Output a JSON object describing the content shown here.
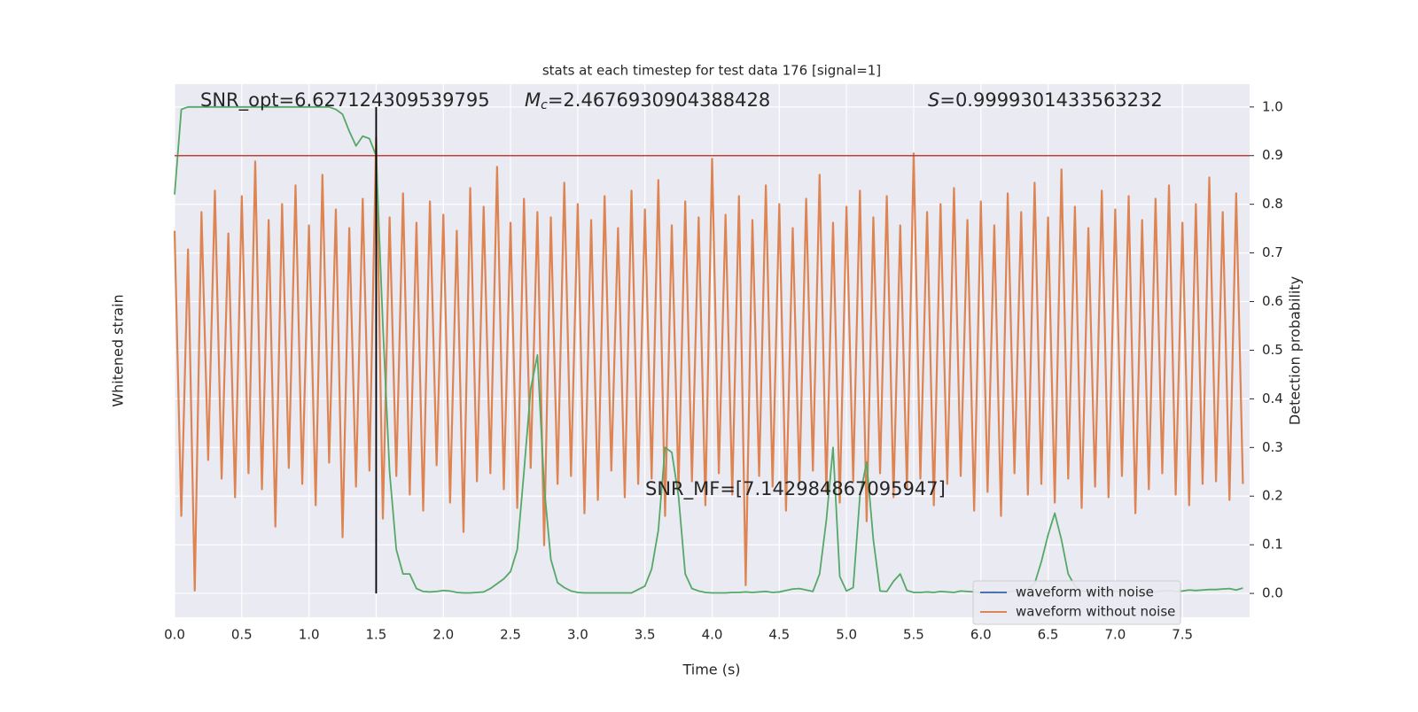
{
  "chart_data": {
    "type": "line",
    "title": "stats at each timestep for test data 176 [signal=1]",
    "xlabel": "Time (s)",
    "ylabel": "Whitened strain",
    "y2label": "Detection probability",
    "xlim": [
      0,
      8.0
    ],
    "xticks": [
      {
        "value": 0,
        "label": "0.0"
      },
      0.5,
      {
        "value": 1,
        "label": "1.0"
      },
      1.5,
      {
        "value": 2,
        "label": "2.0"
      },
      2.5,
      {
        "value": 3,
        "label": "3.0"
      },
      3.5,
      {
        "value": 4,
        "label": "4.0"
      },
      4.5,
      {
        "value": 5,
        "label": "5.0"
      },
      5.5,
      {
        "value": 6,
        "label": "6.0"
      },
      6.5,
      {
        "value": 7,
        "label": "7.0"
      },
      7.5
    ],
    "ylim": [
      -1,
      1
    ],
    "y2lim": [
      -0.049,
      1.047
    ],
    "y2ticks": [
      {
        "value": 0,
        "label": "0.0"
      },
      0.1,
      0.2,
      0.3,
      0.4,
      0.5,
      0.6,
      0.7,
      0.8,
      0.9,
      {
        "value": 1,
        "label": "1.0"
      }
    ],
    "grid": true,
    "legend": "lower right",
    "hline": {
      "value": 0.9,
      "color": "#c0423b"
    },
    "vline": {
      "x": 1.5,
      "ymin": 0,
      "ymax": 1.0,
      "color": "#000000"
    },
    "annotations": [
      {
        "text": "SNR_opt=6.627124309539795"
      },
      {
        "italic": "M",
        "sub": "c",
        "text": "=2.4676930904388428"
      },
      {
        "italic": "S",
        "text": "=0.9999301433563232"
      },
      {
        "text": "SNR_MF=[7.142984867095947]"
      }
    ],
    "x": [
      0,
      0.05,
      0.1,
      0.15,
      0.2,
      0.25,
      0.3,
      0.35,
      0.4,
      0.45,
      0.5,
      0.55,
      0.6,
      0.65,
      0.7,
      0.75,
      0.8,
      0.85,
      0.9,
      0.95,
      1,
      1.05,
      1.1,
      1.15,
      1.2,
      1.25,
      1.3,
      1.35,
      1.4,
      1.45,
      1.5,
      1.55,
      1.6,
      1.65,
      1.7,
      1.75,
      1.8,
      1.85,
      1.9,
      1.95,
      2,
      2.05,
      2.1,
      2.15,
      2.2,
      2.25,
      2.3,
      2.35,
      2.4,
      2.45,
      2.5,
      2.55,
      2.6,
      2.65,
      2.7,
      2.75,
      2.8,
      2.85,
      2.9,
      2.95,
      3,
      3.05,
      3.1,
      3.15,
      3.2,
      3.25,
      3.3,
      3.35,
      3.4,
      3.45,
      3.5,
      3.55,
      3.6,
      3.65,
      3.7,
      3.75,
      3.8,
      3.85,
      3.9,
      3.95,
      4,
      4.05,
      4.1,
      4.15,
      4.2,
      4.25,
      4.3,
      4.35,
      4.4,
      4.45,
      4.5,
      4.55,
      4.6,
      4.65,
      4.7,
      4.75,
      4.8,
      4.85,
      4.9,
      4.95,
      5,
      5.05,
      5.1,
      5.15,
      5.2,
      5.25,
      5.3,
      5.35,
      5.4,
      5.45,
      5.5,
      5.55,
      5.6,
      5.65,
      5.7,
      5.75,
      5.8,
      5.85,
      5.9,
      5.95,
      6,
      6.05,
      6.1,
      6.15,
      6.2,
      6.25,
      6.3,
      6.35,
      6.4,
      6.45,
      6.5,
      6.55,
      6.6,
      6.65,
      6.7,
      6.75,
      6.8,
      6.85,
      6.9,
      6.95,
      7,
      7.05,
      7.1,
      7.15,
      7.2,
      7.25,
      7.3,
      7.35,
      7.4,
      7.45,
      7.5,
      7.55,
      7.6,
      7.65,
      7.7,
      7.75,
      7.8,
      7.85,
      7.9,
      7.95
    ],
    "series": [
      {
        "name": "waveform with noise",
        "color": "#4c72b0",
        "axis": "y",
        "values": [
          null,
          null,
          null,
          null,
          null,
          null,
          null,
          null,
          null,
          null,
          null,
          null,
          null,
          null,
          null,
          null,
          null,
          null,
          null,
          null,
          null,
          null,
          null,
          null,
          null,
          null,
          null,
          null,
          null,
          null,
          null,
          null,
          null,
          null,
          null,
          null,
          null,
          null,
          null,
          null,
          null,
          null,
          null,
          null,
          null,
          null,
          null,
          null,
          null,
          null,
          null,
          null,
          null,
          null,
          null,
          null,
          null,
          null,
          null,
          null,
          null,
          null,
          null,
          null,
          null,
          null,
          null,
          null,
          null,
          null,
          null,
          null,
          null,
          null,
          null,
          null,
          null,
          null,
          null,
          null,
          null,
          null,
          null,
          null,
          null,
          null,
          null,
          null,
          null,
          null,
          null,
          null,
          null,
          null,
          null,
          null,
          null,
          null,
          null,
          null,
          null,
          null,
          null,
          null,
          null,
          null,
          null,
          null,
          null,
          null,
          null,
          null,
          null,
          null,
          null,
          null,
          null,
          null,
          null,
          null,
          null,
          null,
          null,
          null,
          null,
          null,
          null,
          null,
          null,
          null,
          null,
          null,
          null,
          null,
          null,
          null,
          null,
          null,
          null,
          null,
          null,
          null,
          null,
          null,
          null,
          null,
          null,
          null,
          null,
          null,
          null,
          null,
          null,
          null,
          null,
          null,
          null,
          null,
          null,
          null
        ]
      },
      {
        "name": "waveform without noise",
        "color": "#dd8452",
        "axis": "y",
        "values": [
          0.45,
          -0.62,
          0.38,
          -0.9,
          0.52,
          -0.41,
          0.6,
          -0.48,
          0.44,
          -0.55,
          0.58,
          -0.46,
          0.71,
          -0.52,
          0.49,
          -0.66,
          0.55,
          -0.44,
          0.62,
          -0.5,
          0.47,
          -0.58,
          0.66,
          -0.42,
          0.53,
          -0.7,
          0.46,
          -0.51,
          0.57,
          -0.45,
          0.8,
          -0.63,
          0.5,
          -0.47,
          0.59,
          -0.54,
          0.48,
          -0.6,
          0.56,
          -0.43,
          0.51,
          -0.57,
          0.45,
          -0.68,
          0.61,
          -0.49,
          0.54,
          -0.46,
          0.69,
          -0.52,
          0.48,
          -0.59,
          0.57,
          -0.44,
          0.52,
          -0.73,
          0.5,
          -0.5,
          0.63,
          -0.47,
          0.55,
          -0.61,
          0.49,
          -0.56,
          0.58,
          -0.45,
          0.46,
          -0.55,
          0.6,
          -0.5,
          0.53,
          -0.48,
          0.64,
          -0.62,
          0.47,
          -0.52,
          0.56,
          -0.49,
          0.5,
          -0.58,
          0.72,
          -0.46,
          0.51,
          -0.54,
          0.58,
          -0.88,
          0.49,
          -0.47,
          0.62,
          -0.51,
          0.55,
          -0.6,
          0.46,
          -0.5,
          0.57,
          -0.45,
          0.66,
          -0.53,
          0.48,
          -0.57,
          0.54,
          -0.49,
          0.6,
          -0.64,
          0.5,
          -0.46,
          0.58,
          -0.55,
          0.47,
          -0.52,
          0.74,
          -0.48,
          0.52,
          -0.58,
          0.55,
          -0.5,
          0.61,
          -0.47,
          0.49,
          -0.6,
          0.56,
          -0.53,
          0.47,
          -0.62,
          0.59,
          -0.46,
          0.52,
          -0.54,
          0.63,
          -0.5,
          0.5,
          -0.57,
          0.68,
          -0.48,
          0.54,
          -0.59,
          0.46,
          -0.51,
          0.6,
          -0.55,
          0.53,
          -0.47,
          0.58,
          -0.61,
          0.49,
          -0.52,
          0.57,
          -0.46,
          0.62,
          -0.54,
          0.48,
          -0.58,
          0.55,
          -0.5,
          0.65,
          -0.49,
          0.52,
          -0.56,
          0.59,
          -0.5
        ]
      },
      {
        "color": "#55a868",
        "axis": "y2",
        "values": [
          0.82,
          0.995,
          1.0,
          1.0,
          1.0,
          1.0,
          1.0,
          1.0,
          1.0,
          1.0,
          1.0,
          1.0,
          1.0,
          1.0,
          1.0,
          1.0,
          1.0,
          1.0,
          1.0,
          1.0,
          1.0,
          1.0,
          1.0,
          1.0,
          0.995,
          0.985,
          0.95,
          0.92,
          0.94,
          0.935,
          0.9,
          0.55,
          0.25,
          0.09,
          0.04,
          0.04,
          0.01,
          0.004,
          0.003,
          0.004,
          0.006,
          0.005,
          0.002,
          0.001,
          0.001,
          0.002,
          0.003,
          0.01,
          0.02,
          0.03,
          0.045,
          0.09,
          0.25,
          0.42,
          0.49,
          0.22,
          0.07,
          0.022,
          0.012,
          0.005,
          0.002,
          0.001,
          0.001,
          0.001,
          0.001,
          0.001,
          0.001,
          0.001,
          0.001,
          0.008,
          0.015,
          0.05,
          0.13,
          0.3,
          0.29,
          0.2,
          0.04,
          0.01,
          0.005,
          0.002,
          0.001,
          0.001,
          0.001,
          0.002,
          0.002,
          0.003,
          0.002,
          0.003,
          0.004,
          0.002,
          0.003,
          0.006,
          0.009,
          0.01,
          0.007,
          0.004,
          0.04,
          0.15,
          0.3,
          0.035,
          0.005,
          0.012,
          0.2,
          0.27,
          0.11,
          0.005,
          0.004,
          0.025,
          0.04,
          0.006,
          0.002,
          0.002,
          0.003,
          0.002,
          0.004,
          0.003,
          0.002,
          0.005,
          0.004,
          0.003,
          0.002,
          0.003,
          0.004,
          0.002,
          0.003,
          0.005,
          0.004,
          0.01,
          0.02,
          0.065,
          0.12,
          0.165,
          0.11,
          0.04,
          0.015,
          0.005,
          0.004,
          0.003,
          0.003,
          0.004,
          0.005,
          0.003,
          0.004,
          0.006,
          0.005,
          0.004,
          0.003,
          0.005,
          0.006,
          0.004,
          0.005,
          0.007,
          0.006,
          0.007,
          0.008,
          0.008,
          0.009,
          0.01,
          0.007,
          0.011
        ]
      }
    ]
  }
}
